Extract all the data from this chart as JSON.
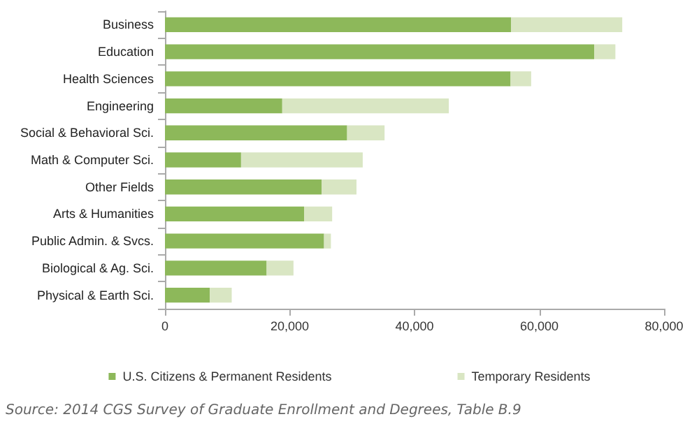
{
  "chart_data": {
    "type": "bar",
    "orientation": "horizontal",
    "stacked": true,
    "categories": [
      "Business",
      "Education",
      "Health Sciences",
      "Engineering",
      "Social & Behavioral Sci.",
      "Math & Computer Sci.",
      "Other Fields",
      "Arts & Humanities",
      "Public Admin. & Svcs.",
      "Biological & Ag. Sci.",
      "Physical & Earth Sci."
    ],
    "series": [
      {
        "name": "U.S. Citizens & Permanent Residents",
        "color": "#8db85a",
        "values": [
          55500,
          68800,
          55400,
          18800,
          29200,
          12200,
          25100,
          22300,
          25500,
          16300,
          7200
        ]
      },
      {
        "name": "Temporary Residents",
        "color": "#d9e6c3",
        "values": [
          17800,
          3400,
          3300,
          26700,
          6000,
          19500,
          5600,
          4500,
          1100,
          4300,
          3500
        ]
      }
    ],
    "xlim": [
      0,
      80000
    ],
    "xticks": [
      {
        "value": 0,
        "label": "0"
      },
      {
        "value": 20000,
        "label": "20,000"
      },
      {
        "value": 40000,
        "label": "40,000"
      },
      {
        "value": 60000,
        "label": "60,000"
      },
      {
        "value": 80000,
        "label": "80,000"
      }
    ],
    "grid": false,
    "legend": "bottom",
    "annotations": [
      "Source: 2014 CGS Survey of Graduate Enrollment and Degrees, Table B.9"
    ]
  }
}
